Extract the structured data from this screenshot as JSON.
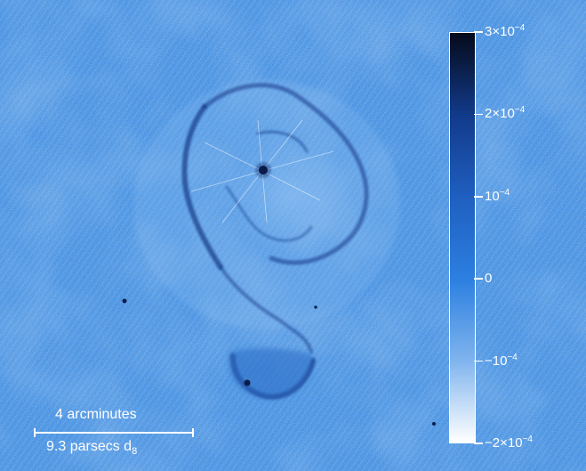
{
  "colors": {
    "background": "#3a8ae0",
    "colorbar_max": "#050a1a",
    "colorbar_mid": "#2c7fe0",
    "colorbar_min": "#ffffff",
    "nebula_shell": "#1a3f8f",
    "annotation": "#ffffff"
  },
  "colorbar": {
    "ticks": [
      {
        "mantissa": "3",
        "times": "×",
        "base": "10",
        "exp": "−4",
        "value": 0.0003
      },
      {
        "mantissa": "2",
        "times": "×",
        "base": "10",
        "exp": "−4",
        "value": 0.0002
      },
      {
        "mantissa": "",
        "times": "",
        "base": "10",
        "exp": "−4",
        "value": 0.0001
      },
      {
        "mantissa": "0",
        "times": "",
        "base": "",
        "exp": "",
        "value": 0
      },
      {
        "mantissa": "−",
        "times": "",
        "base": "10",
        "exp": "−4",
        "value": -0.0001
      },
      {
        "mantissa": "−2",
        "times": "×",
        "base": "10",
        "exp": "−4",
        "value": -0.0002
      }
    ],
    "range": [
      -0.0002,
      0.0003
    ]
  },
  "scale_bar": {
    "angular_label": "4 arcminutes",
    "physical_label": "9.3 parsecs d",
    "physical_subscript": "8"
  }
}
